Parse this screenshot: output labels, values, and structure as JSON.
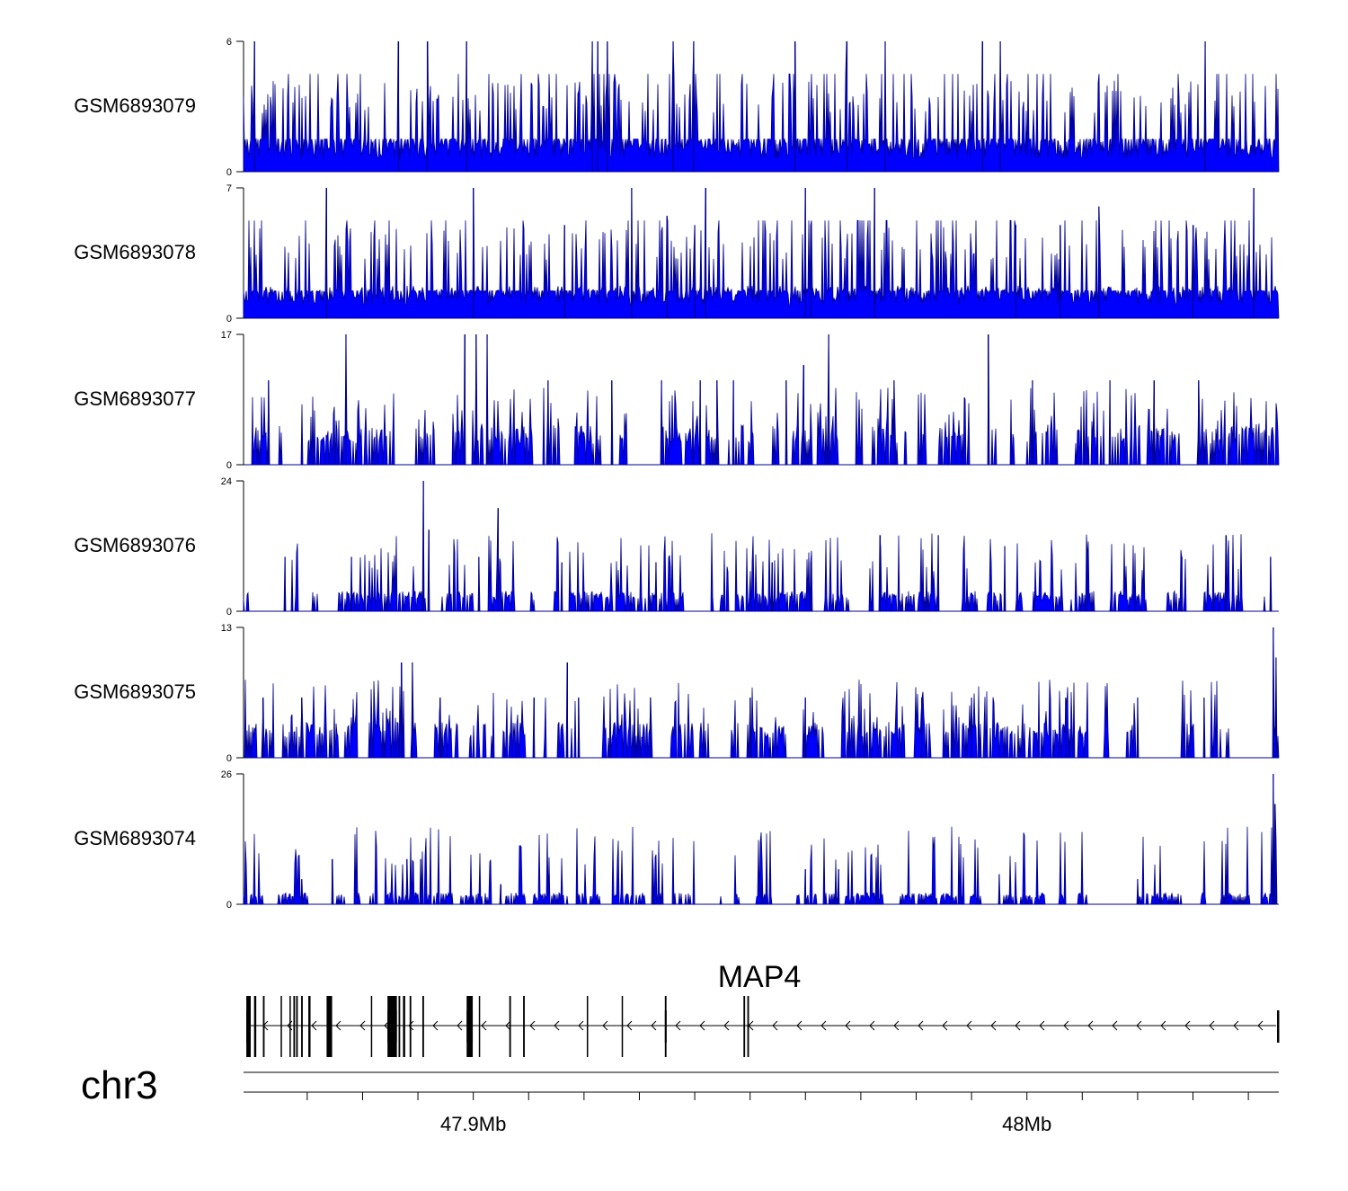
{
  "chart_data": {
    "type": "area",
    "chromosome": "chr3",
    "gene": {
      "name": "MAP4",
      "strand": "-"
    },
    "x_axis": {
      "unit": "Mb",
      "range_mb": [
        47.8585,
        48.0455
      ],
      "ticks": [
        47.87,
        47.88,
        47.89,
        47.9,
        47.91,
        47.92,
        47.93,
        47.94,
        47.95,
        47.96,
        47.97,
        47.98,
        47.99,
        48.0,
        48.01,
        48.02,
        48.03,
        48.04
      ],
      "labels": [
        {
          "value": 47.9,
          "text": "47.9Mb"
        },
        {
          "value": 48.0,
          "text": "48Mb"
        }
      ]
    },
    "fill_color": "#0000ff",
    "stroke_color": "#00008b",
    "tracks": [
      {
        "name": "GSM6893079",
        "ymin": 0,
        "ymax": 6,
        "peaks": [
          [
            47.8605,
            6
          ],
          [
            47.8865,
            6
          ],
          [
            47.8917,
            6
          ],
          [
            47.8988,
            6
          ],
          [
            47.9215,
            6
          ],
          [
            47.9225,
            6
          ],
          [
            47.9242,
            6
          ],
          [
            47.9361,
            6
          ],
          [
            47.9398,
            6
          ],
          [
            47.9581,
            6
          ],
          [
            47.9675,
            6
          ],
          [
            47.9744,
            6
          ],
          [
            47.992,
            6
          ],
          [
            47.9952,
            6
          ],
          [
            48.0322,
            6
          ]
        ]
      },
      {
        "name": "GSM6893078",
        "ymin": 0,
        "ymax": 7,
        "peaks": [
          [
            47.8735,
            7
          ],
          [
            47.9,
            7
          ],
          [
            47.9165,
            5
          ],
          [
            47.9286,
            7
          ],
          [
            47.935,
            5.5
          ],
          [
            47.94,
            5
          ],
          [
            47.942,
            7
          ],
          [
            47.961,
            5
          ],
          [
            47.96,
            7
          ],
          [
            47.9725,
            7
          ],
          [
            47.998,
            5
          ],
          [
            48.006,
            5
          ],
          [
            48.013,
            6
          ],
          [
            48.03,
            5
          ],
          [
            48.041,
            7
          ]
        ]
      },
      {
        "name": "GSM6893077",
        "ymin": 0,
        "ymax": 17,
        "peaks": [
          [
            47.863,
            11
          ],
          [
            47.877,
            17
          ],
          [
            47.8985,
            17
          ],
          [
            47.9005,
            17
          ],
          [
            47.9025,
            17
          ],
          [
            47.9135,
            11
          ],
          [
            47.925,
            11
          ],
          [
            47.934,
            11
          ],
          [
            47.941,
            11
          ],
          [
            47.944,
            11
          ],
          [
            47.947,
            11
          ],
          [
            47.9565,
            11
          ],
          [
            47.9597,
            13
          ],
          [
            47.9642,
            17
          ],
          [
            47.976,
            11
          ],
          [
            47.993,
            17
          ],
          [
            48.001,
            11
          ],
          [
            48.015,
            11
          ],
          [
            48.023,
            11
          ],
          [
            48.031,
            11
          ]
        ]
      },
      {
        "name": "GSM6893076",
        "ymin": 0,
        "ymax": 24,
        "peaks": [
          [
            47.866,
            10
          ],
          [
            47.878,
            10
          ],
          [
            47.891,
            24
          ],
          [
            47.892,
            15
          ],
          [
            47.901,
            10
          ],
          [
            47.9045,
            19
          ],
          [
            47.916,
            9
          ],
          [
            47.933,
            9
          ],
          [
            47.954,
            9
          ],
          [
            47.961,
            9
          ],
          [
            47.9735,
            14
          ],
          [
            47.984,
            14
          ],
          [
            47.996,
            12
          ],
          [
            48.011,
            10
          ],
          [
            48.028,
            10
          ],
          [
            48.036,
            14
          ],
          [
            48.044,
            10
          ]
        ]
      },
      {
        "name": "GSM6893075",
        "ymin": 0,
        "ymax": 13,
        "peaks": [
          [
            47.862,
            6
          ],
          [
            47.869,
            6
          ],
          [
            47.887,
            9.5
          ],
          [
            47.889,
            9.5
          ],
          [
            47.894,
            6
          ],
          [
            47.911,
            6
          ],
          [
            47.917,
            9.5
          ],
          [
            47.919,
            6
          ],
          [
            47.932,
            6
          ],
          [
            47.95,
            6
          ],
          [
            47.96,
            6
          ],
          [
            47.981,
            6
          ],
          [
            47.99,
            6
          ],
          [
            48.007,
            6
          ],
          [
            48.02,
            6
          ],
          [
            48.032,
            6
          ],
          [
            48.0445,
            13
          ],
          [
            48.045,
            10
          ]
        ]
      },
      {
        "name": "GSM6893074",
        "ymin": 0,
        "ymax": 26,
        "peaks": [
          [
            47.869,
            5
          ],
          [
            47.8745,
            9
          ],
          [
            47.888,
            9
          ],
          [
            47.8905,
            9
          ],
          [
            47.905,
            4
          ],
          [
            47.9325,
            7
          ],
          [
            47.952,
            4
          ],
          [
            47.96,
            7
          ],
          [
            47.966,
            7
          ],
          [
            47.995,
            6
          ],
          [
            48.02,
            5
          ],
          [
            48.0445,
            26
          ],
          [
            48.0448,
            20
          ]
        ]
      }
    ],
    "gene_model": {
      "intron_span": [
        47.859,
        48.045
      ],
      "exons": [
        [
          47.859,
          47.8598
        ],
        [
          47.8604,
          47.8608
        ],
        [
          47.862,
          47.8623
        ],
        [
          47.8652,
          47.8654
        ],
        [
          47.8668,
          47.867
        ],
        [
          47.8675,
          47.8678
        ],
        [
          47.868,
          47.8683
        ],
        [
          47.8689,
          47.8692
        ],
        [
          47.8702,
          47.8706
        ],
        [
          47.8735,
          47.8745
        ],
        [
          47.8815,
          47.8817
        ],
        [
          47.8845,
          47.8862
        ],
        [
          47.8865,
          47.8868
        ],
        [
          47.8873,
          47.8877
        ],
        [
          47.8885,
          47.8888
        ],
        [
          47.8908,
          47.8911
        ],
        [
          47.8988,
          47.8999
        ],
        [
          47.901,
          47.9012
        ],
        [
          47.9065,
          47.9068
        ],
        [
          47.909,
          47.9093
        ],
        [
          47.9205,
          47.9207
        ],
        [
          47.9268,
          47.927
        ],
        [
          47.9346,
          47.9349
        ],
        [
          47.9488,
          47.9491
        ],
        [
          47.9495,
          47.9498
        ]
      ],
      "tall_exons": [
        [
          47.859,
          47.8598
        ],
        [
          47.8735,
          47.8745
        ],
        [
          47.8845,
          47.8862
        ],
        [
          47.9205,
          47.9207
        ],
        [
          47.9346,
          47.9349
        ]
      ]
    }
  }
}
